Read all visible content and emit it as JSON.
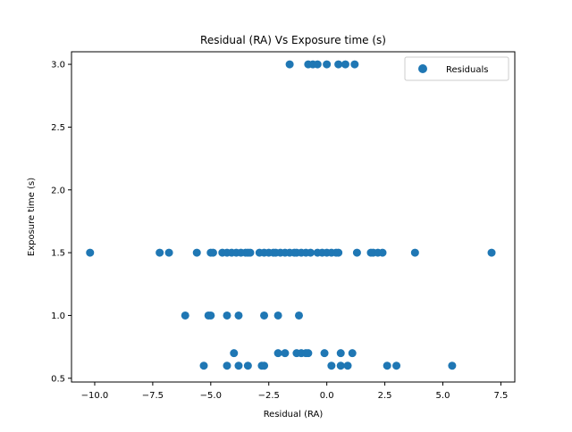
{
  "chart_data": {
    "type": "scatter",
    "title": "Residual (RA) Vs Exposure time (s)",
    "xlabel": "Residual (RA)",
    "ylabel": "Exposure time (s)",
    "xlim": [
      -11.0,
      8.1
    ],
    "ylim": [
      0.47,
      3.1
    ],
    "xticks": [
      -10.0,
      -7.5,
      -5.0,
      -2.5,
      0.0,
      2.5,
      5.0,
      7.5
    ],
    "xtick_labels": [
      "−10.0",
      "−7.5",
      "−5.0",
      "−2.5",
      "0.0",
      "2.5",
      "5.0",
      "7.5"
    ],
    "yticks": [
      0.5,
      1.0,
      1.5,
      2.0,
      2.5,
      3.0
    ],
    "ytick_labels": [
      "0.5",
      "1.0",
      "1.5",
      "2.0",
      "2.5",
      "3.0"
    ],
    "grid": false,
    "legend_position": "top-right",
    "series": [
      {
        "name": "Residuals",
        "color": "#1f77b4",
        "points": [
          [
            -1.6,
            3.0
          ],
          [
            -0.8,
            3.0
          ],
          [
            -0.6,
            3.0
          ],
          [
            -0.4,
            3.0
          ],
          [
            0.0,
            3.0
          ],
          [
            0.5,
            3.0
          ],
          [
            0.8,
            3.0
          ],
          [
            1.2,
            3.0
          ],
          [
            -10.2,
            1.5
          ],
          [
            -7.2,
            1.5
          ],
          [
            -6.8,
            1.5
          ],
          [
            -5.6,
            1.5
          ],
          [
            -5.0,
            1.5
          ],
          [
            -4.9,
            1.5
          ],
          [
            -4.5,
            1.5
          ],
          [
            -4.3,
            1.5
          ],
          [
            -4.1,
            1.5
          ],
          [
            -3.9,
            1.5
          ],
          [
            -3.7,
            1.5
          ],
          [
            -3.5,
            1.5
          ],
          [
            -3.4,
            1.5
          ],
          [
            -3.3,
            1.5
          ],
          [
            -2.9,
            1.5
          ],
          [
            -2.7,
            1.5
          ],
          [
            -2.5,
            1.5
          ],
          [
            -2.3,
            1.5
          ],
          [
            -2.2,
            1.5
          ],
          [
            -2.0,
            1.5
          ],
          [
            -1.8,
            1.5
          ],
          [
            -1.6,
            1.5
          ],
          [
            -1.4,
            1.5
          ],
          [
            -1.3,
            1.5
          ],
          [
            -1.1,
            1.5
          ],
          [
            -0.9,
            1.5
          ],
          [
            -0.7,
            1.5
          ],
          [
            -0.4,
            1.5
          ],
          [
            -0.2,
            1.5
          ],
          [
            0.0,
            1.5
          ],
          [
            0.2,
            1.5
          ],
          [
            0.4,
            1.5
          ],
          [
            0.5,
            1.5
          ],
          [
            1.3,
            1.5
          ],
          [
            1.9,
            1.5
          ],
          [
            2.0,
            1.5
          ],
          [
            2.2,
            1.5
          ],
          [
            2.4,
            1.5
          ],
          [
            3.8,
            1.5
          ],
          [
            7.1,
            1.5
          ],
          [
            -6.1,
            1.0
          ],
          [
            -5.1,
            1.0
          ],
          [
            -5.0,
            1.0
          ],
          [
            -4.3,
            1.0
          ],
          [
            -3.8,
            1.0
          ],
          [
            -2.7,
            1.0
          ],
          [
            -2.1,
            1.0
          ],
          [
            -1.2,
            1.0
          ],
          [
            -4.0,
            0.7
          ],
          [
            -2.1,
            0.7
          ],
          [
            -1.8,
            0.7
          ],
          [
            -1.3,
            0.7
          ],
          [
            -1.1,
            0.7
          ],
          [
            -0.9,
            0.7
          ],
          [
            -0.8,
            0.7
          ],
          [
            -0.1,
            0.7
          ],
          [
            0.6,
            0.7
          ],
          [
            1.1,
            0.7
          ],
          [
            -5.3,
            0.6
          ],
          [
            -4.3,
            0.6
          ],
          [
            -3.8,
            0.6
          ],
          [
            -3.4,
            0.6
          ],
          [
            -2.8,
            0.6
          ],
          [
            -2.7,
            0.6
          ],
          [
            0.2,
            0.6
          ],
          [
            0.6,
            0.6
          ],
          [
            0.9,
            0.6
          ],
          [
            2.6,
            0.6
          ],
          [
            3.0,
            0.6
          ],
          [
            5.4,
            0.6
          ]
        ]
      }
    ]
  }
}
